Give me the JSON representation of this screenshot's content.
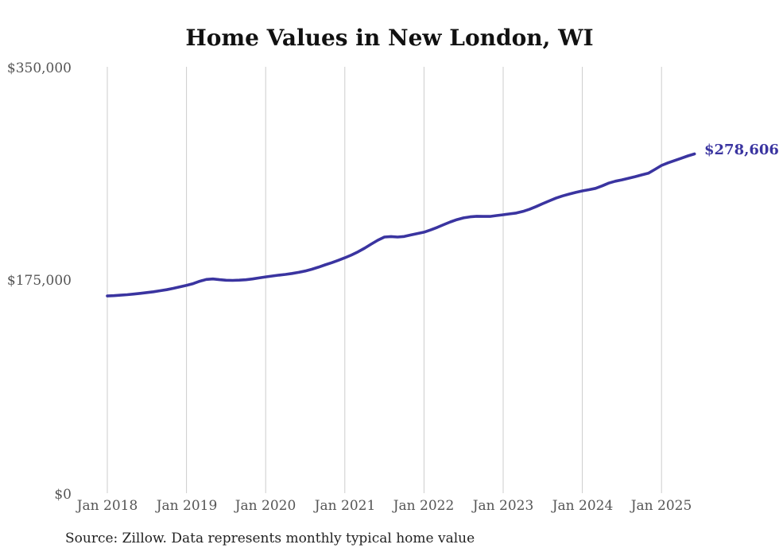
{
  "title": "Home Values in New London, WI",
  "source_note": "Source: Zillow. Data represents monthly typical home value",
  "colors": {
    "line": "#3a34a0",
    "end_label": "#3a34a0",
    "grid": "#cccccc",
    "axis_label": "#555555",
    "title": "#111111",
    "source": "#222222",
    "background": "#ffffff"
  },
  "chart_data": {
    "type": "line",
    "title": "Home Values in New London, WI",
    "xlabel": "",
    "ylabel": "",
    "ylim": [
      0,
      350000
    ],
    "grid": "vertical-only",
    "legend": "none",
    "frequency": "monthly",
    "x_start_month": "Jan 2018",
    "x_end_month": "Jun 2025",
    "x_tick_labels": [
      "Jan 2018",
      "Jan 2019",
      "Jan 2020",
      "Jan 2021",
      "Jan 2022",
      "Jan 2023",
      "Jan 2024",
      "Jan 2025"
    ],
    "y_tick_labels": [
      "$0",
      "$175,000",
      "$350,000"
    ],
    "y_tick_values": [
      0,
      175000,
      350000
    ],
    "end_label": "$278,606",
    "end_value": 278606,
    "series": [
      {
        "name": "Typical home value",
        "values": [
          162200,
          162500,
          162900,
          163300,
          163800,
          164400,
          165000,
          165700,
          166500,
          167400,
          168500,
          169700,
          170900,
          172300,
          174300,
          175800,
          176200,
          175600,
          175100,
          175000,
          175200,
          175500,
          176200,
          177000,
          177900,
          178600,
          179300,
          179900,
          180700,
          181600,
          182700,
          184100,
          185800,
          187700,
          189500,
          191400,
          193500,
          195800,
          198400,
          201400,
          204700,
          207900,
          210500,
          210900,
          210500,
          211000,
          212200,
          213400,
          214500,
          216300,
          218400,
          220700,
          222900,
          224800,
          226200,
          227100,
          227500,
          227400,
          227400,
          228100,
          228800,
          229500,
          230200,
          231500,
          233300,
          235500,
          237900,
          240200,
          242400,
          244200,
          245700,
          247100,
          248300,
          249300,
          250400,
          252400,
          254700,
          256300,
          257400,
          258700,
          260000,
          261400,
          262800,
          265900,
          269200,
          271300,
          273200,
          275100,
          277000,
          278606
        ]
      }
    ]
  }
}
